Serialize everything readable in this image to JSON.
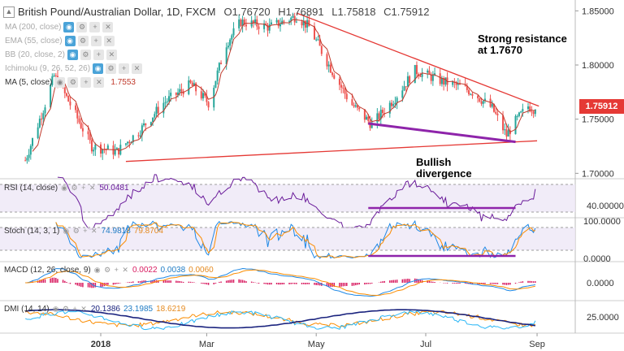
{
  "header": {
    "symbol": "British Pound/Australian Dollar, 1D, FXCM",
    "collapse_icon": "chevron-up-icon",
    "ohlc": {
      "open": "O1.76720",
      "high": "H1.76891",
      "low": "L1.75818",
      "close": "C1.75912"
    }
  },
  "indicators": [
    {
      "label": "MA (200, close)",
      "active": false
    },
    {
      "label": "EMA (55, close)",
      "active": false
    },
    {
      "label": "BB (20, close, 2)",
      "active": false
    },
    {
      "label": "Ichimoku (9, 26, 52, 26)",
      "active": false
    },
    {
      "label": "MA (5, close)",
      "active": true,
      "value": "1.7553"
    }
  ],
  "annotations": {
    "resistance": [
      "Strong resistance",
      "at 1.7670"
    ],
    "divergence": [
      "Bullish",
      "divergence"
    ]
  },
  "price_tag": "1.75912",
  "panes": {
    "rsi": {
      "label": "RSI (14, close)",
      "value": "50.0481"
    },
    "stoch": {
      "label": "Stoch (14, 3, 1)",
      "k": "74.9818",
      "d": "79.8704"
    },
    "macd": {
      "label": "MACD (12, 26, close, 9)",
      "hist": "0.0022",
      "macd": "0.0038",
      "signal": "0.0060"
    },
    "dmi": {
      "label": "DMI (14, 14)",
      "plus": "20.1386",
      "minus": "23.1985",
      "adx": "18.6219"
    }
  },
  "colors": {
    "bull": "#26a69a",
    "bear": "#ef5350",
    "trend": "#e53935",
    "divergence": "#8e24aa",
    "ma": "#c0392b",
    "stoch_k": "#1e88e5",
    "stoch_d": "#fb8c00",
    "rsi": "#6a1b9a",
    "macd_hist": "#d81b60",
    "dmi_adx": "#1a237e"
  },
  "chart_data": {
    "type": "candlestick",
    "title": "British Pound/Australian Dollar, 1D, FXCM",
    "price_axis": {
      "ticks": [
        1.7,
        1.75,
        1.8,
        1.85
      ],
      "range": [
        1.695,
        1.86
      ]
    },
    "time_axis": {
      "labels": [
        "2018",
        "Mar",
        "May",
        "Jul",
        "Sep"
      ]
    },
    "price_path": [
      {
        "date": "2017-11-20",
        "close": 1.712
      },
      {
        "date": "2017-12-01",
        "close": 1.764
      },
      {
        "date": "2017-12-06",
        "close": 1.79
      },
      {
        "date": "2017-12-13",
        "close": 1.77
      },
      {
        "date": "2017-12-27",
        "close": 1.725
      },
      {
        "date": "2018-01-10",
        "close": 1.72
      },
      {
        "date": "2018-01-23",
        "close": 1.74
      },
      {
        "date": "2018-02-05",
        "close": 1.765
      },
      {
        "date": "2018-02-20",
        "close": 1.782
      },
      {
        "date": "2018-03-02",
        "close": 1.765
      },
      {
        "date": "2018-03-12",
        "close": 1.82
      },
      {
        "date": "2018-03-20",
        "close": 1.84
      },
      {
        "date": "2018-04-05",
        "close": 1.835
      },
      {
        "date": "2018-04-20",
        "close": 1.845
      },
      {
        "date": "2018-04-27",
        "close": 1.835
      },
      {
        "date": "2018-05-08",
        "close": 1.8
      },
      {
        "date": "2018-05-20",
        "close": 1.765
      },
      {
        "date": "2018-06-01",
        "close": 1.745
      },
      {
        "date": "2018-06-14",
        "close": 1.77
      },
      {
        "date": "2018-06-25",
        "close": 1.795
      },
      {
        "date": "2018-07-10",
        "close": 1.785
      },
      {
        "date": "2018-07-20",
        "close": 1.78
      },
      {
        "date": "2018-07-27",
        "close": 1.775
      },
      {
        "date": "2018-08-07",
        "close": 1.76
      },
      {
        "date": "2018-08-15",
        "close": 1.735
      },
      {
        "date": "2018-08-20",
        "close": 1.748
      },
      {
        "date": "2018-08-27",
        "close": 1.762
      },
      {
        "date": "2018-08-31",
        "close": 1.7591
      }
    ],
    "resistance_line": [
      {
        "date": "2018-04-20",
        "price": 1.848
      },
      {
        "date": "2018-09-02",
        "price": 1.762
      }
    ],
    "support_line": [
      {
        "date": "2018-01-15",
        "price": 1.711
      },
      {
        "date": "2018-09-01",
        "price": 1.73
      }
    ],
    "divergence_price": [
      {
        "date": "2018-05-30",
        "price": 1.746
      },
      {
        "date": "2018-08-20",
        "price": 1.729
      }
    ],
    "rsi": {
      "ticks": [
        40
      ],
      "upper_tick": 60,
      "last": 50.0481,
      "divergence": [
        {
          "date": "2018-05-30",
          "value": 36
        },
        {
          "date": "2018-08-20",
          "value": 36
        }
      ]
    },
    "stoch": {
      "ticks": [
        0,
        100
      ],
      "last_k": 74.9818,
      "last_d": 79.8704
    },
    "macd": {
      "ticks": [
        0.0
      ],
      "hist": 0.0022,
      "macd": 0.0038,
      "signal": 0.006
    },
    "dmi": {
      "ticks": [
        25.0
      ],
      "plus_di": 20.1386,
      "minus_di": 23.1985,
      "adx": 18.6219
    }
  }
}
